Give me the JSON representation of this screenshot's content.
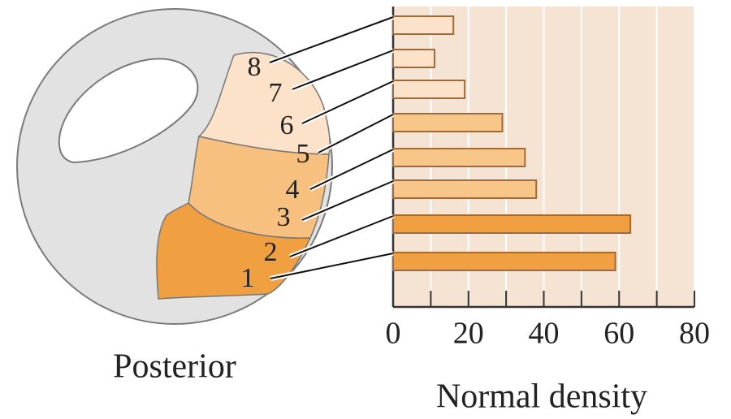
{
  "chart_data": {
    "type": "bar",
    "orientation": "horizontal",
    "categories": [
      "1",
      "2",
      "3",
      "4",
      "5",
      "6",
      "7",
      "8"
    ],
    "values": [
      59,
      63,
      38,
      35,
      29,
      19,
      11,
      16
    ],
    "colors": [
      "#f0a040",
      "#f0a040",
      "#f7c688",
      "#f7c688",
      "#f7c688",
      "#fbe2c8",
      "#fbe2c8",
      "#fbe2c8"
    ],
    "xlim": [
      0,
      80
    ],
    "xticks": [
      0,
      20,
      40,
      60,
      80
    ],
    "minor_xticks": [
      10,
      30,
      50,
      70
    ],
    "xlabel": "Normal density",
    "diagram_label": "Posterior",
    "background": "#f5e3d4",
    "grid": true
  }
}
